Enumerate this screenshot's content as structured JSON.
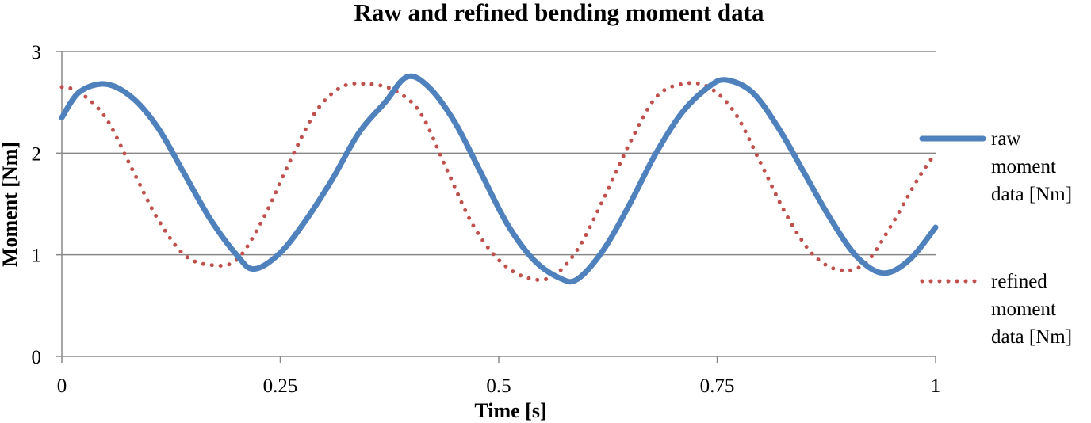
{
  "chart_data": {
    "type": "line",
    "title": "Raw and refined bending moment data",
    "xlabel": "Time [s]",
    "ylabel": "Moment [Nm]",
    "xlim": [
      0,
      1
    ],
    "ylim": [
      0,
      3
    ],
    "x_ticks": [
      "0",
      "0.25",
      "0.5",
      "0.75",
      "1"
    ],
    "y_ticks": [
      "0",
      "1",
      "2",
      "3"
    ],
    "grid": "horizontal",
    "legend_position": "right",
    "series": [
      {
        "name": "raw moment data [Nm]",
        "color": "#4F81BD",
        "style": "solid",
        "x": [
          0,
          0.02,
          0.05,
          0.08,
          0.11,
          0.14,
          0.17,
          0.2,
          0.22,
          0.25,
          0.28,
          0.31,
          0.34,
          0.37,
          0.395,
          0.42,
          0.45,
          0.48,
          0.51,
          0.54,
          0.57,
          0.59,
          0.62,
          0.65,
          0.68,
          0.71,
          0.74,
          0.76,
          0.79,
          0.82,
          0.85,
          0.88,
          0.91,
          0.94,
          0.97,
          1.0
        ],
        "y": [
          2.35,
          2.6,
          2.68,
          2.55,
          2.25,
          1.8,
          1.35,
          1.0,
          0.86,
          1.02,
          1.35,
          1.75,
          2.2,
          2.5,
          2.75,
          2.65,
          2.3,
          1.8,
          1.3,
          0.95,
          0.77,
          0.76,
          1.05,
          1.5,
          2.0,
          2.4,
          2.65,
          2.72,
          2.6,
          2.25,
          1.8,
          1.35,
          0.98,
          0.82,
          0.95,
          1.27
        ]
      },
      {
        "name": "refined moment data [Nm]",
        "color": "#C0504D",
        "style": "dotted",
        "x": [
          0,
          0.02,
          0.05,
          0.08,
          0.11,
          0.14,
          0.17,
          0.2,
          0.23,
          0.26,
          0.29,
          0.32,
          0.35,
          0.38,
          0.41,
          0.44,
          0.47,
          0.5,
          0.53,
          0.56,
          0.59,
          0.62,
          0.65,
          0.68,
          0.71,
          0.74,
          0.77,
          0.8,
          0.83,
          0.86,
          0.89,
          0.92,
          0.95,
          0.98,
          1.0
        ],
        "y": [
          2.65,
          2.6,
          2.35,
          1.85,
          1.35,
          1.0,
          0.9,
          0.95,
          1.35,
          1.9,
          2.4,
          2.65,
          2.68,
          2.62,
          2.4,
          1.85,
          1.3,
          0.95,
          0.78,
          0.78,
          1.05,
          1.55,
          2.1,
          2.55,
          2.68,
          2.65,
          2.4,
          1.9,
          1.38,
          1.0,
          0.85,
          0.92,
          1.3,
          1.75,
          2.0
        ]
      }
    ]
  }
}
